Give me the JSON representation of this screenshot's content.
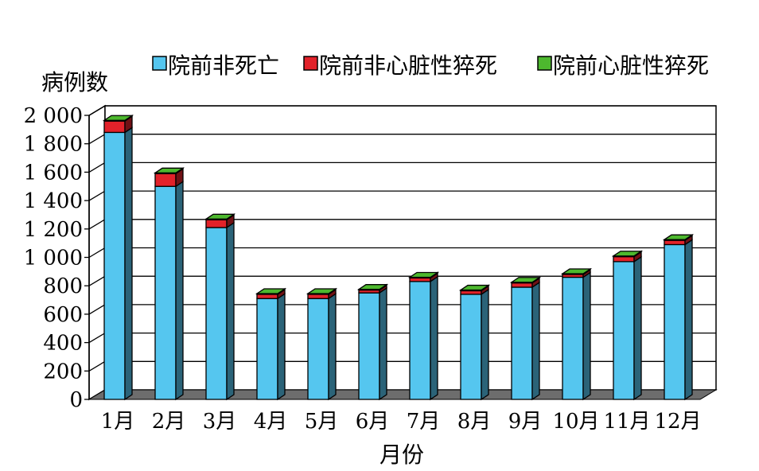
{
  "chart_data": {
    "type": "bar",
    "stacked": true,
    "three_d": true,
    "categories": [
      "1月",
      "2月",
      "3月",
      "4月",
      "5月",
      "6月",
      "7月",
      "8月",
      "9月",
      "10月",
      "11月",
      "12月"
    ],
    "series": [
      {
        "name": "院前非死亡",
        "color": "#55c6ef",
        "values": [
          1880,
          1500,
          1210,
          710,
          710,
          750,
          830,
          740,
          790,
          860,
          970,
          1090
        ]
      },
      {
        "name": "院前非心脏性猝死",
        "color": "#e2222a",
        "values": [
          80,
          90,
          55,
          30,
          30,
          20,
          25,
          25,
          30,
          20,
          35,
          30
        ]
      },
      {
        "name": "院前心脏性猝死",
        "color": "#4db82e",
        "values": [
          5,
          5,
          5,
          5,
          5,
          5,
          5,
          5,
          5,
          5,
          5,
          5
        ]
      }
    ],
    "ylabel": "病例数",
    "xlabel": "月份",
    "ylim": [
      0,
      2000
    ],
    "yticks": [
      0,
      200,
      400,
      600,
      800,
      1000,
      1200,
      1400,
      1600,
      1800,
      2000
    ],
    "ytick_labels": [
      "0",
      "200",
      "400",
      "600",
      "800",
      "1 000",
      "1 200",
      "1 400",
      "1 600",
      "1 800",
      "2 000"
    ],
    "grid": true,
    "legend": "top"
  }
}
